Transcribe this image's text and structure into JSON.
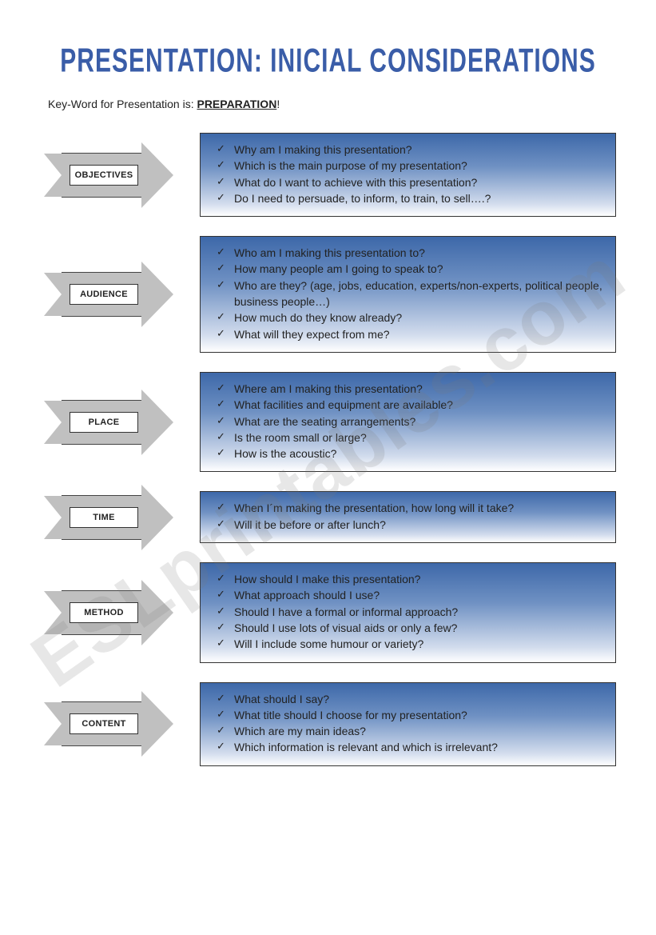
{
  "title": "PRESENTATION: INICIAL CONSIDERATIONS",
  "keyword": {
    "prefix": "Key-Word for Presentation is:  ",
    "emph": "PREPARATION",
    "suffix": "!"
  },
  "watermark": "ESLprintables.com",
  "sections": [
    {
      "label": "OBJECTIVES",
      "items": [
        "Why am I making this presentation?",
        "Which is the main purpose of my presentation?",
        "What do I want to achieve with this presentation?",
        "Do I need to persuade, to inform, to train, to sell….?"
      ]
    },
    {
      "label": "AUDIENCE",
      "items": [
        "Who am I making this presentation to?",
        "How many people am I going to speak to?",
        "Who are they? (age, jobs, education, experts/non-experts, political people, business people…)",
        "How much do they know already?",
        "What will they expect from me?"
      ]
    },
    {
      "label": "PLACE",
      "items": [
        "Where am I making this presentation?",
        "What facilities and equipment are available?",
        "What are the seating arrangements?",
        "Is the room small or large?",
        "How is the acoustic?"
      ]
    },
    {
      "label": "TIME",
      "items": [
        "When I´m making the presentation, how long will it take?",
        "Will it be before or after lunch?"
      ]
    },
    {
      "label": "METHOD",
      "items": [
        "How should I make this presentation?",
        "What approach should I use?",
        "Should I have a formal or informal approach?",
        "Should I use lots of visual aids or only a few?",
        "Will I include some humour or variety?"
      ]
    },
    {
      "label": "CONTENT",
      "items": [
        "What should I say?",
        "What title should I choose for my presentation?",
        "Which are my main ideas?",
        "Which information is relevant and which is irrelevant?"
      ]
    }
  ],
  "colors": {
    "title_color": "#3a5da8",
    "arrow_fill": "#c0c0c0",
    "box_gradient_top": "#3d68a9",
    "box_gradient_mid": "#6f91c3",
    "box_gradient_low": "#d2dced",
    "box_gradient_bottom": "#ffffff",
    "text_color": "#222222",
    "background": "#ffffff"
  }
}
